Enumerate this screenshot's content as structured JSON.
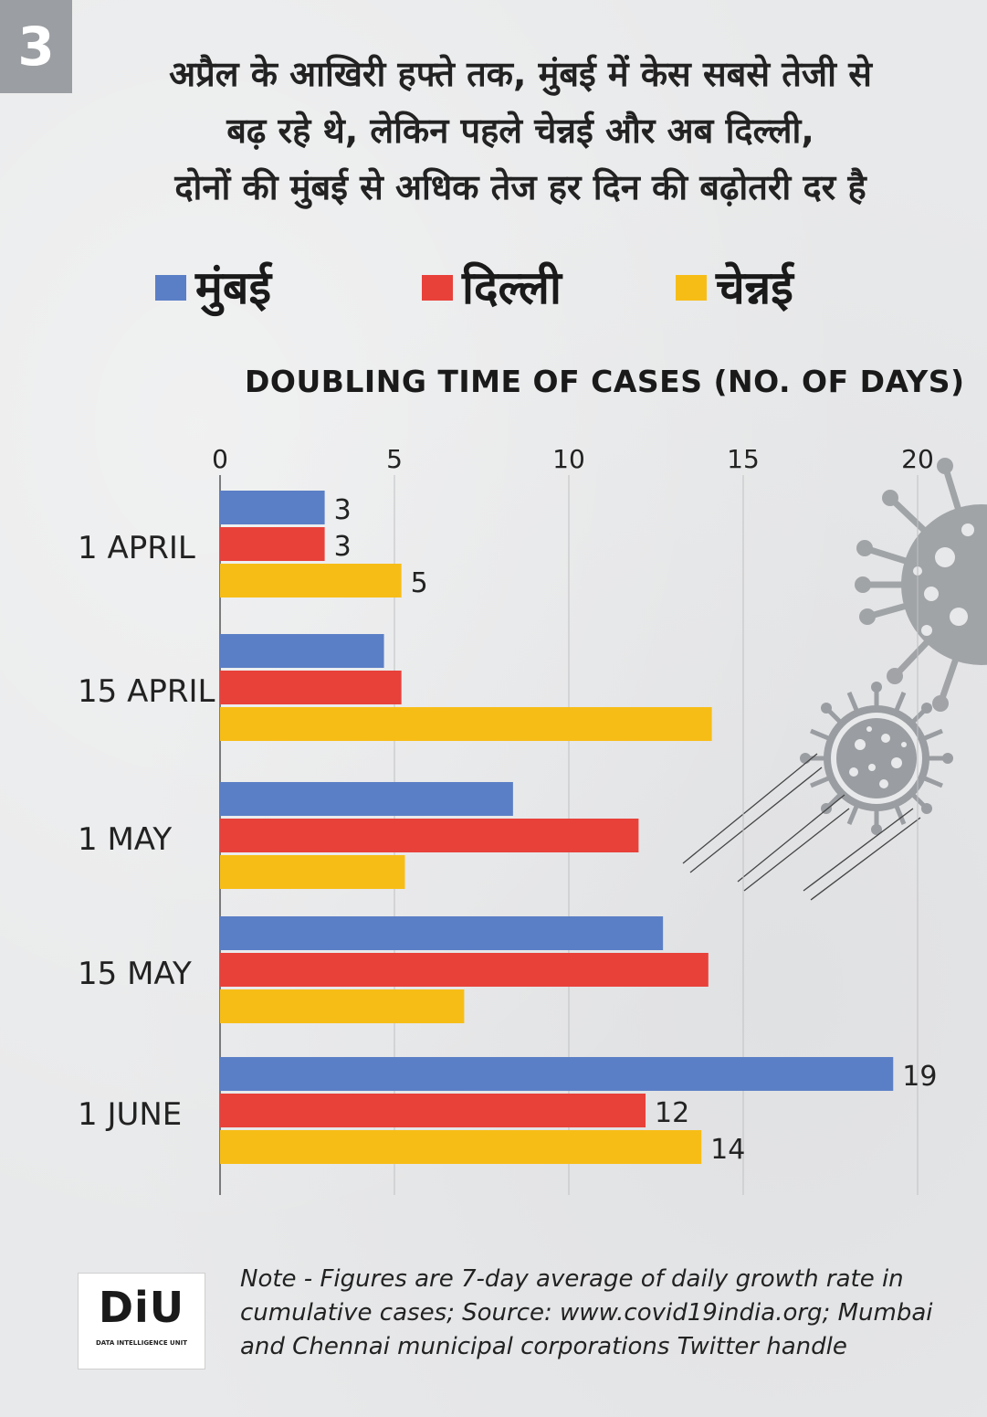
{
  "badge": "3",
  "headline": {
    "line1": "अप्रैल के आखिरी हफ्ते तक, मुंबई में केस सबसे तेजी से",
    "line2": "बढ़ रहे थे, लेकिन पहले चेन्नई और अब दिल्ली,",
    "line3": "दोनों की मुंबई से अधिक तेज हर दिन की बढ़ोतरी दर है"
  },
  "colors": {
    "mumbai": "#5b7fc6",
    "delhi": "#e8413a",
    "chennai": "#f7bd17"
  },
  "icons": [
    "virus-icon",
    "virus-icon"
  ],
  "note": "Note - Figures are 7-day average of daily growth rate in cumulative cases; Source: www.covid19india.org; Mumbai and Chennai municipal corporations Twitter handle",
  "logo": {
    "letters": "DiU",
    "subtitle": "DATA INTELLIGENCE UNIT"
  },
  "chart_data": {
    "type": "bar",
    "orientation": "horizontal",
    "title": "DOUBLING TIME OF CASES (NO. OF DAYS)",
    "categories": [
      "1 APRIL",
      "15 APRIL",
      "1 MAY",
      "15 MAY",
      "1 JUNE"
    ],
    "series": [
      {
        "name": "मुंबई",
        "color": "#5b7fc6",
        "values": [
          3,
          4.7,
          8.4,
          12.7,
          19.3
        ],
        "labels": [
          "3",
          "",
          "",
          "",
          "19"
        ]
      },
      {
        "name": "दिल्ली",
        "color": "#e8413a",
        "values": [
          3,
          5.2,
          12,
          14,
          12.2
        ],
        "labels": [
          "3",
          "",
          "",
          "",
          "12"
        ]
      },
      {
        "name": "चेन्नई",
        "color": "#f7bd17",
        "values": [
          5.2,
          14.1,
          5.3,
          7,
          13.8
        ],
        "labels": [
          "5",
          "",
          "",
          "",
          "14"
        ]
      }
    ],
    "xlim": [
      0,
      20
    ],
    "xticks": [
      "0",
      "5",
      "10",
      "15",
      "20"
    ],
    "grid": true,
    "legend": "top"
  }
}
